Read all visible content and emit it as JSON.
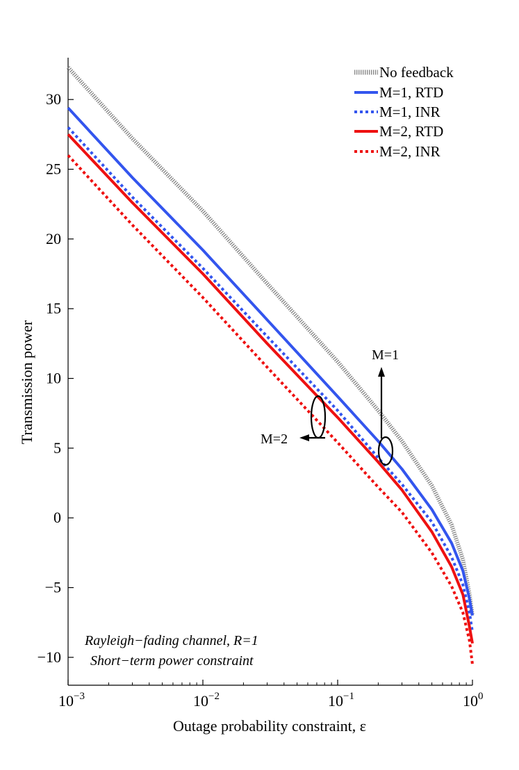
{
  "chart_data": {
    "type": "line",
    "title": "",
    "xlabel": "Outage probability constraint, ε",
    "ylabel": "Transmission power",
    "xscale": "log",
    "xlim": [
      0.001,
      1
    ],
    "ylim": [
      -12,
      33
    ],
    "x_ticks": [
      {
        "value": 0.001,
        "base": "10",
        "exp": "−3"
      },
      {
        "value": 0.01,
        "base": "10",
        "exp": "−2"
      },
      {
        "value": 0.1,
        "base": "10",
        "exp": "−1"
      },
      {
        "value": 1,
        "base": "10",
        "exp": "0"
      }
    ],
    "y_ticks": [
      {
        "value": 30,
        "label": "30"
      },
      {
        "value": 25,
        "label": "25"
      },
      {
        "value": 20,
        "label": "20"
      },
      {
        "value": 15,
        "label": "15"
      },
      {
        "value": 10,
        "label": "10"
      },
      {
        "value": 5,
        "label": "5"
      },
      {
        "value": 0,
        "label": "0"
      },
      {
        "value": -5,
        "label": "−5"
      },
      {
        "value": -10,
        "label": "−10"
      }
    ],
    "grid": false,
    "legend_position": "top-right",
    "series": [
      {
        "name": "No feedback",
        "color": "#888888",
        "style": "dotted-thick",
        "x": [
          0.001,
          0.003,
          0.01,
          0.03,
          0.1,
          0.2,
          0.3,
          0.5,
          0.7,
          0.85,
          0.95,
          1.0
        ],
        "y": [
          32.3,
          27.2,
          22.0,
          16.8,
          11.2,
          7.7,
          5.5,
          2.3,
          -0.5,
          -3.0,
          -5.5,
          -7.0
        ]
      },
      {
        "name": "M=1, RTD",
        "color": "#3355ee",
        "style": "solid",
        "x": [
          0.001,
          0.003,
          0.01,
          0.03,
          0.1,
          0.2,
          0.3,
          0.5,
          0.7,
          0.85,
          0.95,
          1.0
        ],
        "y": [
          29.4,
          24.4,
          19.2,
          14.2,
          8.7,
          5.5,
          3.5,
          0.6,
          -1.8,
          -3.8,
          -5.8,
          -7.0
        ]
      },
      {
        "name": "M=1, INR",
        "color": "#3355ee",
        "style": "dashed",
        "x": [
          0.001,
          0.003,
          0.01,
          0.03,
          0.1,
          0.2,
          0.3,
          0.5,
          0.7,
          0.85,
          0.95,
          1.0
        ],
        "y": [
          28.0,
          23.0,
          17.9,
          13.0,
          7.7,
          4.3,
          2.4,
          -0.3,
          -2.8,
          -4.8,
          -6.8,
          -8.2
        ]
      },
      {
        "name": "M=2, RTD",
        "color": "#ee1111",
        "style": "solid",
        "x": [
          0.001,
          0.003,
          0.01,
          0.03,
          0.1,
          0.2,
          0.3,
          0.5,
          0.7,
          0.85,
          0.95,
          1.0
        ],
        "y": [
          27.5,
          22.6,
          17.5,
          12.5,
          7.2,
          4.0,
          2.0,
          -1.0,
          -3.5,
          -5.5,
          -7.8,
          -9.0
        ]
      },
      {
        "name": "M=2, INR",
        "color": "#ee1111",
        "style": "dashed",
        "x": [
          0.001,
          0.003,
          0.01,
          0.03,
          0.1,
          0.2,
          0.3,
          0.5,
          0.7,
          0.85,
          0.95,
          1.0
        ],
        "y": [
          26.0,
          21.0,
          15.8,
          10.8,
          5.4,
          2.2,
          0.4,
          -2.5,
          -4.9,
          -6.8,
          -8.8,
          -10.5
        ]
      }
    ],
    "annotations": [
      {
        "text": "M=1",
        "target_x": 0.23,
        "target_y": 4.7
      },
      {
        "text": "M=2",
        "target_x": 0.075,
        "target_y": 7.2
      }
    ],
    "note_lines": [
      "Rayleigh−fading channel, R=1",
      "Short−term power constraint"
    ]
  }
}
